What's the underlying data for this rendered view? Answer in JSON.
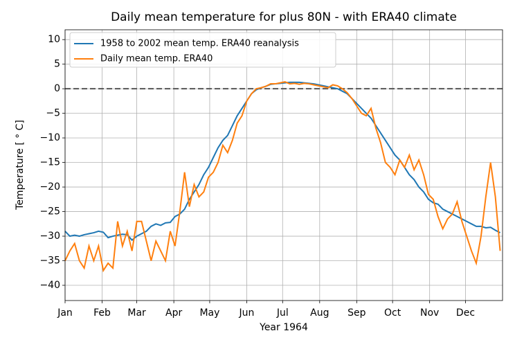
{
  "chart_data": {
    "type": "line",
    "title": "Daily mean temperature for plus 80N - with ERA40 climate",
    "x_label": "Year 1964",
    "y_label": "Temperature [ ° C]",
    "x": [
      0,
      4,
      8,
      12,
      16,
      20,
      24,
      28,
      32,
      36,
      40,
      44,
      48,
      52,
      56,
      60,
      64,
      68,
      72,
      76,
      80,
      84,
      88,
      92,
      96,
      100,
      104,
      108,
      112,
      116,
      120,
      124,
      128,
      132,
      136,
      140,
      144,
      148,
      152,
      156,
      160,
      164,
      168,
      172,
      176,
      180,
      184,
      188,
      192,
      196,
      200,
      204,
      208,
      212,
      216,
      220,
      224,
      228,
      232,
      236,
      240,
      244,
      248,
      252,
      256,
      260,
      264,
      268,
      272,
      276,
      280,
      284,
      288,
      292,
      296,
      300,
      304,
      308,
      312,
      316,
      320,
      324,
      328,
      332,
      336,
      340,
      344,
      348,
      352,
      356,
      360,
      364
    ],
    "series": [
      {
        "name": "1958 to 2002 mean temp. ERA40 reanalysis",
        "color": "#1f77b4",
        "values": [
          -29,
          -30,
          -29.8,
          -30,
          -29.7,
          -29.5,
          -29.3,
          -29,
          -29.2,
          -30.3,
          -30,
          -29.8,
          -29.6,
          -29.7,
          -30.8,
          -30,
          -29.5,
          -29,
          -28,
          -27.5,
          -27.8,
          -27.3,
          -27.2,
          -26,
          -25.5,
          -24.5,
          -22.5,
          -21,
          -19.5,
          -17.5,
          -16,
          -14,
          -12,
          -10.5,
          -9.5,
          -7.5,
          -5.5,
          -4,
          -2.5,
          -1,
          -0.2,
          0.2,
          0.5,
          0.9,
          1,
          1.1,
          1.2,
          1.3,
          1.3,
          1.3,
          1.2,
          1.1,
          1.0,
          0.8,
          0.6,
          0.4,
          0.2,
          0,
          -0.5,
          -1,
          -2,
          -3,
          -4,
          -5,
          -6,
          -7.5,
          -9,
          -10.5,
          -12,
          -13.5,
          -14.5,
          -16,
          -17.5,
          -18.5,
          -20,
          -21,
          -22.5,
          -23.2,
          -23.5,
          -24.5,
          -25,
          -25.5,
          -26,
          -26.5,
          -27,
          -27.5,
          -28,
          -28,
          -28.3,
          -28.2,
          -28.8,
          -29.3
        ]
      },
      {
        "name": "Daily mean temp. ERA40",
        "color": "#ff7f0e",
        "values": [
          -35,
          -33,
          -31.5,
          -35,
          -36.5,
          -32,
          -35,
          -32,
          -37,
          -35.5,
          -36.5,
          -27,
          -32,
          -29,
          -33,
          -27,
          -27,
          -31,
          -35,
          -31,
          -33,
          -35,
          -29,
          -32,
          -25,
          -17,
          -24,
          -19.5,
          -22,
          -21,
          -18,
          -17,
          -15,
          -11.5,
          -13,
          -10.5,
          -7,
          -5.5,
          -2.5,
          -1,
          0,
          0.2,
          0.5,
          1,
          1,
          1.2,
          1.4,
          1,
          1.1,
          0.9,
          1.1,
          1,
          0.8,
          0.6,
          0.4,
          0.2,
          0.8,
          0.6,
          0,
          -0.8,
          -2,
          -3.5,
          -5,
          -5.5,
          -4,
          -8,
          -11,
          -15,
          -16,
          -17.5,
          -14.5,
          -16,
          -13.5,
          -16.5,
          -14.5,
          -17.5,
          -21.5,
          -22.5,
          -26,
          -28.5,
          -26.5,
          -25.5,
          -23,
          -27,
          -30,
          -33,
          -35.5,
          -30,
          -22,
          -15,
          -22,
          -33
        ]
      }
    ],
    "xlim": [
      0,
      366
    ],
    "xticks": [
      {
        "value": 0,
        "label": "Jan"
      },
      {
        "value": 31,
        "label": "Feb"
      },
      {
        "value": 60,
        "label": "Mar"
      },
      {
        "value": 91,
        "label": "Apr"
      },
      {
        "value": 121,
        "label": "May"
      },
      {
        "value": 152,
        "label": "Jun"
      },
      {
        "value": 182,
        "label": "Jul"
      },
      {
        "value": 213,
        "label": "Aug"
      },
      {
        "value": 244,
        "label": "Sep"
      },
      {
        "value": 274,
        "label": "Oct"
      },
      {
        "value": 305,
        "label": "Nov"
      },
      {
        "value": 335,
        "label": "Dec"
      }
    ],
    "ylim": [
      -43.1,
      12.0
    ],
    "yticks": [
      {
        "value": -40,
        "label": "−40"
      },
      {
        "value": -35,
        "label": "−35"
      },
      {
        "value": -30,
        "label": "−30"
      },
      {
        "value": -25,
        "label": "−25"
      },
      {
        "value": -20,
        "label": "−20"
      },
      {
        "value": -15,
        "label": "−15"
      },
      {
        "value": -10,
        "label": "−10"
      },
      {
        "value": -5,
        "label": "−5"
      },
      0,
      5,
      10
    ],
    "hline": 0,
    "grid": true,
    "legend": "upper left"
  }
}
